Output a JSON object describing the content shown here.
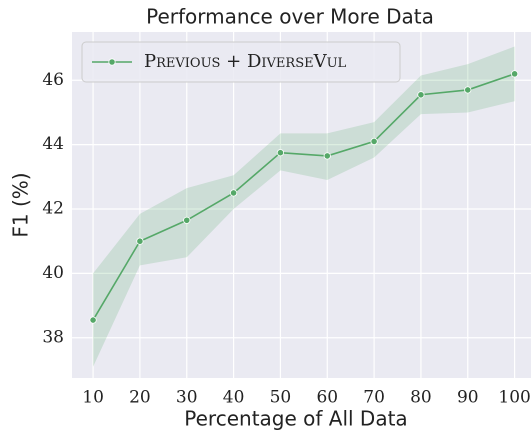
{
  "chart_data": {
    "type": "line",
    "title": "Performance over More Data",
    "xlabel": "Percentage of All Data",
    "ylabel": "F1 (%)",
    "x": [
      10,
      20,
      30,
      40,
      50,
      60,
      70,
      80,
      90,
      100
    ],
    "series": [
      {
        "name": "Previous + DiverseVul",
        "color": "#55a868",
        "values": [
          38.55,
          41.0,
          41.65,
          42.5,
          43.75,
          43.65,
          44.1,
          45.55,
          45.7,
          46.2
        ],
        "lower": [
          37.1,
          40.25,
          40.5,
          42.0,
          43.2,
          42.9,
          43.6,
          44.95,
          45.0,
          45.35
        ],
        "upper": [
          40.0,
          41.85,
          42.65,
          43.05,
          44.35,
          44.35,
          44.7,
          46.15,
          46.5,
          47.05
        ]
      }
    ],
    "xlim": [
      5.5,
      103.5
    ],
    "ylim": [
      36.75,
      47.5
    ],
    "xticks": [
      10,
      20,
      30,
      40,
      50,
      60,
      70,
      80,
      90,
      100
    ],
    "yticks": [
      38,
      40,
      42,
      44,
      46
    ],
    "grid": true,
    "legend": "upper left"
  }
}
